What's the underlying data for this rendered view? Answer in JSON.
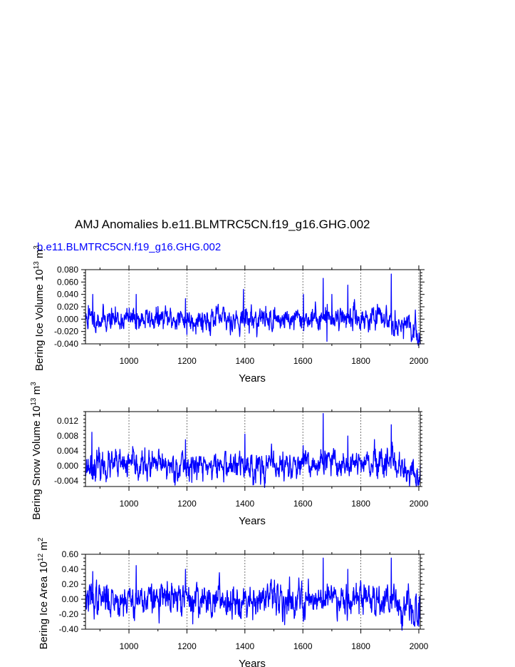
{
  "title": "AMJ Anomalies b.e11.BLMTRC5CN.f19_g16.GHG.002",
  "subtitle": "b.e11.BLMTRC5CN.f19_g16.GHG.002",
  "colors": {
    "series": "#0000ff",
    "axis": "#000000",
    "grid": "#555555"
  },
  "chart_data": [
    {
      "type": "line",
      "ylabel": "Bering Ice Volume 10¹³ m³",
      "ylabel_base": "Bering Ice Volume 10",
      "ylabel_exp": "13",
      "ylabel_unit": " m",
      "ylabel_unit_exp": "3",
      "xlabel": "Years",
      "xlim": [
        850,
        2005
      ],
      "ylim": [
        -0.04,
        0.08
      ],
      "yticks": [
        -0.04,
        -0.02,
        0.0,
        0.02,
        0.04,
        0.06,
        0.08
      ],
      "ytick_labels": [
        "-0.040",
        "-0.020",
        "0.000",
        "0.020",
        "0.040",
        "0.060",
        "0.080"
      ],
      "xticks": [
        1000,
        1200,
        1400,
        1600,
        1800,
        2000
      ],
      "xtick_labels": [
        "1000",
        "1200",
        "1400",
        "1600",
        "1800",
        "2000"
      ],
      "grid_x": [
        1000,
        1200,
        1400,
        1600,
        1800,
        2000
      ],
      "x_start": 850,
      "x_step": 1,
      "noise_sd": 0.0095,
      "trend": [
        [
          850,
          0.0
        ],
        [
          1600,
          0.0
        ],
        [
          1700,
          0.004
        ],
        [
          1900,
          0.0
        ],
        [
          2005,
          -0.025
        ]
      ],
      "peaks": [
        [
          860,
          0.022
        ],
        [
          875,
          0.04
        ],
        [
          1025,
          0.04
        ],
        [
          1195,
          0.033
        ],
        [
          1395,
          0.048
        ],
        [
          1602,
          0.04
        ],
        [
          1670,
          0.066
        ],
        [
          1700,
          0.04
        ],
        [
          1755,
          0.055
        ],
        [
          1905,
          0.073
        ],
        [
          1683,
          -0.036
        ],
        [
          2000,
          -0.032
        ],
        [
          1200,
          -0.025
        ]
      ]
    },
    {
      "type": "line",
      "ylabel": "Bering Snow Volume 10¹³ m³",
      "ylabel_base": "Bering Snow Volume 10",
      "ylabel_exp": "13",
      "ylabel_unit": " m",
      "ylabel_unit_exp": "3",
      "xlabel": "Years",
      "xlim": [
        850,
        2005
      ],
      "ylim": [
        -0.0055,
        0.0145
      ],
      "yticks": [
        -0.004,
        0.0,
        0.004,
        0.008,
        0.012
      ],
      "ytick_labels": [
        "-0.004",
        "0.000",
        "0.004",
        "0.008",
        "0.012"
      ],
      "xticks": [
        1000,
        1200,
        1400,
        1600,
        1800,
        2000
      ],
      "xtick_labels": [
        "1000",
        "1200",
        "1400",
        "1600",
        "1800",
        "2000"
      ],
      "grid_x": [
        1000,
        1200,
        1400,
        1600,
        1800,
        2000
      ],
      "x_start": 850,
      "x_step": 1,
      "noise_sd": 0.0019,
      "trend": [
        [
          850,
          0.0
        ],
        [
          1600,
          0.0
        ],
        [
          1700,
          0.0008
        ],
        [
          1900,
          0.0
        ],
        [
          2005,
          -0.0035
        ]
      ],
      "peaks": [
        [
          872,
          0.009
        ],
        [
          1195,
          0.007
        ],
        [
          1400,
          0.0085
        ],
        [
          1670,
          0.014
        ],
        [
          1755,
          0.008
        ],
        [
          1905,
          0.011
        ],
        [
          1430,
          -0.005
        ],
        [
          2000,
          -0.005
        ]
      ]
    },
    {
      "type": "line",
      "ylabel": "Bering Ice Area 10¹² m²",
      "ylabel_base": "Bering Ice Area 10",
      "ylabel_exp": "12",
      "ylabel_unit": " m",
      "ylabel_unit_exp": "2",
      "xlabel": "Years",
      "xlim": [
        850,
        2005
      ],
      "ylim": [
        -0.4,
        0.6
      ],
      "yticks": [
        -0.4,
        -0.2,
        0.0,
        0.2,
        0.4,
        0.6
      ],
      "ytick_labels": [
        "-0.40",
        "-0.20",
        "0.00",
        "0.20",
        "0.40",
        "0.60"
      ],
      "xticks": [
        1000,
        1200,
        1400,
        1600,
        1800,
        2000
      ],
      "xtick_labels": [
        "1000",
        "1200",
        "1400",
        "1600",
        "1800",
        "2000"
      ],
      "grid_x": [
        1000,
        1200,
        1400,
        1600,
        1800,
        2000
      ],
      "x_start": 850,
      "x_step": 1,
      "noise_sd": 0.11,
      "trend": [
        [
          850,
          0.0
        ],
        [
          1600,
          0.0
        ],
        [
          1700,
          0.04
        ],
        [
          1900,
          0.0
        ],
        [
          2005,
          -0.22
        ]
      ],
      "peaks": [
        [
          875,
          0.37
        ],
        [
          1025,
          0.45
        ],
        [
          1195,
          0.4
        ],
        [
          1670,
          0.55
        ],
        [
          1755,
          0.4
        ],
        [
          1905,
          0.55
        ],
        [
          1220,
          -0.33
        ],
        [
          2000,
          -0.36
        ]
      ]
    }
  ]
}
